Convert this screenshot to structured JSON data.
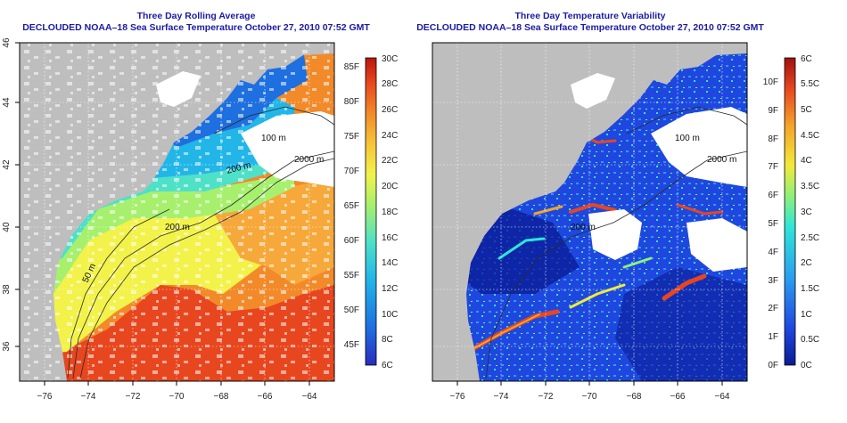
{
  "left_panel": {
    "title": "Three Day Rolling Average",
    "subtitle": "DECLOUDED NOAA–18 Sea Surface Temperature October 27, 2010 07:52 GMT",
    "x_ticks": [
      "−76",
      "−74",
      "−72",
      "−70",
      "−68",
      "−66",
      "−64"
    ],
    "y_ticks": [
      "36",
      "38",
      "40",
      "42",
      "44",
      "46"
    ],
    "contour_labels": [
      "100 m",
      "2000 m",
      "200 m",
      "200 m",
      "50 m"
    ],
    "colorbar": {
      "left_labels": [
        "85F",
        "80F",
        "75F",
        "70F",
        "65F",
        "60F",
        "55F",
        "50F",
        "45F"
      ],
      "right_labels": [
        "30C",
        "28C",
        "26C",
        "24C",
        "22C",
        "20C",
        "18C",
        "16C",
        "14C",
        "12C",
        "10C",
        "8C",
        "6C"
      ]
    }
  },
  "right_panel": {
    "title": "Three Day Temperature Variability",
    "subtitle": "DECLOUDED NOAA–18 Sea Surface Temperature October 27, 2010 07:52 GMT",
    "x_ticks": [
      "−76",
      "−74",
      "−72",
      "−70",
      "−68",
      "−66",
      "−64"
    ],
    "contour_labels": [
      "100 m",
      "2000 m",
      "200 m"
    ],
    "colorbar": {
      "left_labels": [
        "10F",
        "9F",
        "8F",
        "7F",
        "6F",
        "5F",
        "4F",
        "3F",
        "2F",
        "1F",
        "0F"
      ],
      "right_labels": [
        "6C",
        "5.5C",
        "5C",
        "4.5C",
        "4C",
        "3.5C",
        "3C",
        "2.5C",
        "2C",
        "1.5C",
        "1C",
        "0.5C",
        "0C"
      ]
    }
  },
  "colors": {
    "title": "#1a1aa6",
    "land": "#bebebe",
    "cloud": "#ffffff",
    "sst_scale": [
      "#2b2bbf",
      "#1e6fe0",
      "#22b6e8",
      "#4fe0c8",
      "#a6f06e",
      "#f2f24a",
      "#f7c43a",
      "#f28a2a",
      "#e8461e",
      "#b8160f"
    ],
    "var_scale": [
      "#0a1a96",
      "#1f47e0",
      "#2a9cf0",
      "#2ee6d8",
      "#8ef07a",
      "#f2ea3a",
      "#f5a32a",
      "#e8461e",
      "#a0120d"
    ]
  }
}
